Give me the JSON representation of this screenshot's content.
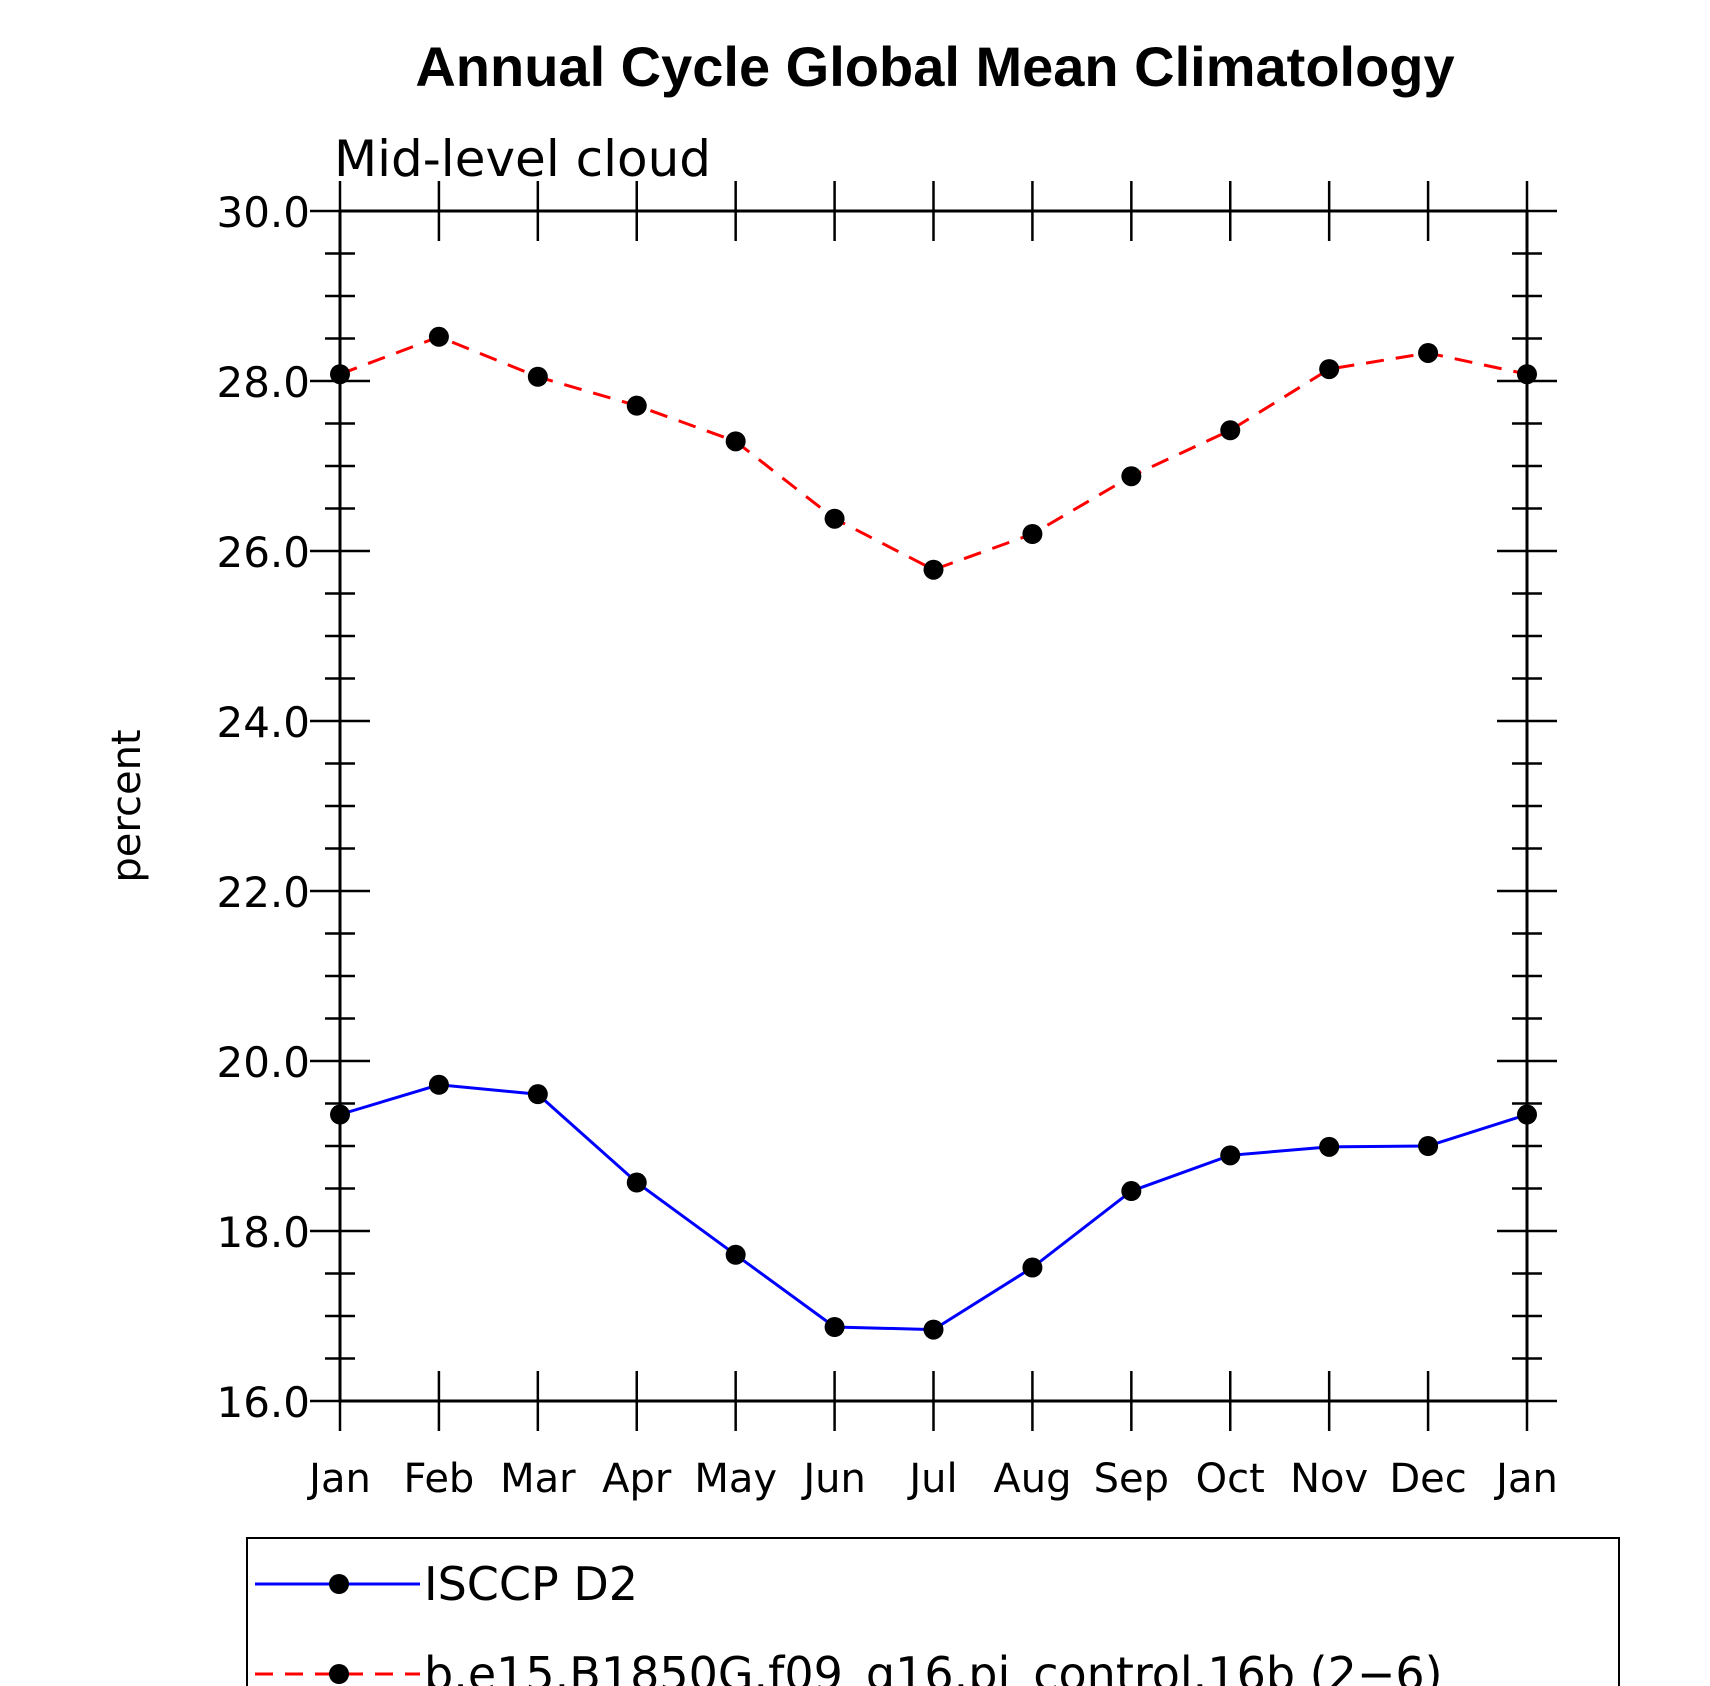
{
  "chart_data": {
    "type": "line",
    "title": "Annual Cycle Global Mean Climatology",
    "subtitle": "Mid-level cloud",
    "xlabel": "",
    "ylabel": "percent",
    "ylim": [
      16.0,
      30.0
    ],
    "y_tick_labels": [
      "16.0",
      "18.0",
      "20.0",
      "22.0",
      "24.0",
      "26.0",
      "28.0",
      "30.0"
    ],
    "categories": [
      "Jan",
      "Feb",
      "Mar",
      "Apr",
      "May",
      "Jun",
      "Jul",
      "Aug",
      "Sep",
      "Oct",
      "Nov",
      "Dec",
      "Jan"
    ],
    "grid": false,
    "legend_position": "bottom",
    "series": [
      {
        "name": "ISCCP D2",
        "color": "#0000ff",
        "line_style": "solid",
        "marker": "circle",
        "values": [
          19.37,
          19.72,
          19.61,
          18.57,
          17.72,
          16.87,
          16.84,
          17.57,
          18.47,
          18.89,
          18.99,
          19.0,
          19.37
        ]
      },
      {
        "name": "b.e15.B1850G.f09_g16.pi_control.16b (2−6)",
        "color": "#ff0000",
        "line_style": "dashed",
        "marker": "circle",
        "values": [
          28.08,
          28.52,
          28.05,
          27.71,
          27.29,
          26.38,
          25.78,
          26.2,
          26.88,
          27.42,
          28.14,
          28.33,
          28.08
        ]
      }
    ]
  }
}
